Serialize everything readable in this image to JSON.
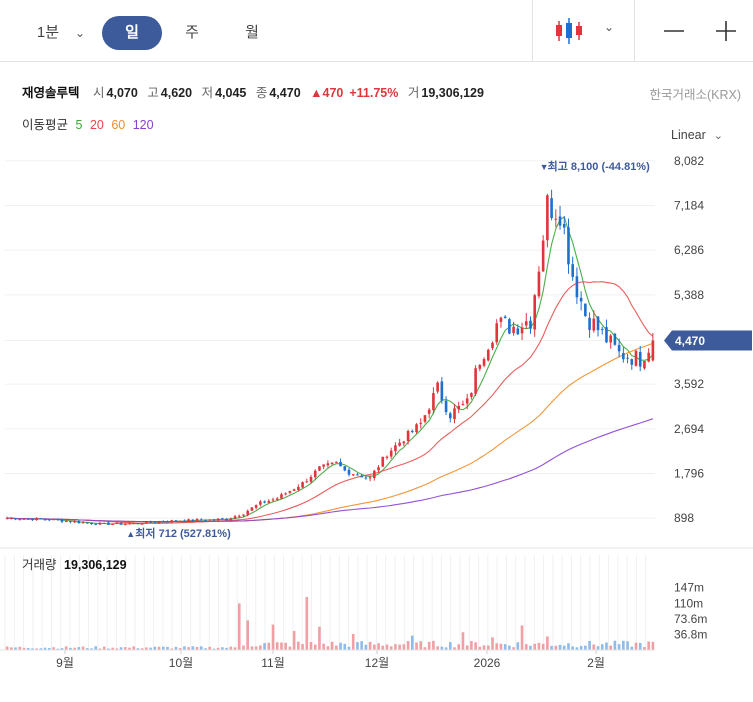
{
  "toolbar": {
    "tf_minute": "1분",
    "tf_day": "일",
    "tf_week": "주",
    "tf_month": "월",
    "active": "일",
    "chart_type_icon": "candlestick-icon",
    "zoom_out_icon": "minus-icon",
    "zoom_in_icon": "plus-icon"
  },
  "quote": {
    "name": "재영솔루텍",
    "open_label": "시",
    "open": "4,070",
    "high_label": "고",
    "high": "4,620",
    "low_label": "저",
    "low": "4,045",
    "close_label": "종",
    "close": "4,470",
    "change": "470",
    "change_pct": "+11.75%",
    "volume_label": "거",
    "volume": "19,306,129",
    "exchange": "한국거래소(KRX)"
  },
  "moving_average": {
    "label": "이동평균",
    "periods": [
      {
        "text": "5",
        "color": "#3aa635"
      },
      {
        "text": "20",
        "color": "#e84a4a"
      },
      {
        "text": "60",
        "color": "#f08c28"
      },
      {
        "text": "120",
        "color": "#8a3fd0"
      }
    ]
  },
  "scale_mode": "Linear",
  "colors": {
    "up": "#e0353d",
    "down": "#1f6fd1",
    "accent": "#3d5a9b"
  },
  "chart_data": {
    "type": "candlestick",
    "price_axis": {
      "ticks": [
        898,
        1796,
        2694,
        3592,
        4470,
        5388,
        6286,
        7184,
        8082
      ],
      "tick_labels": [
        "898",
        "1,796",
        "2,694",
        "3,592",
        "5,388",
        "6,286",
        "7,184",
        "8,082"
      ],
      "range": [
        560,
        8300
      ]
    },
    "current_price": {
      "value": 4470,
      "label": "4,470"
    },
    "high_marker": {
      "value": 8100,
      "label": "최고 8,100 (-44.81%)"
    },
    "low_marker": {
      "value": 712,
      "label": "최저 712 (527.81%)"
    },
    "x_axis": {
      "labels": [
        "9월",
        "10월",
        "11월",
        "12월",
        "2026",
        "2월"
      ]
    },
    "volume_panel": {
      "title": "거래량",
      "value": "19,306,129",
      "tick_labels": [
        "147m",
        "110m",
        "73.6m",
        "36.8m"
      ],
      "ticks": [
        147,
        110,
        73.6,
        36.8
      ],
      "range": [
        0,
        170
      ]
    },
    "keyframes": [
      [
        0,
        900
      ],
      [
        10,
        870
      ],
      [
        22,
        780
      ],
      [
        30,
        790
      ],
      [
        38,
        840
      ],
      [
        45,
        860
      ],
      [
        52,
        880
      ],
      [
        56,
        1000
      ],
      [
        60,
        1200
      ],
      [
        64,
        1300
      ],
      [
        70,
        1600
      ],
      [
        74,
        1900
      ],
      [
        78,
        2000
      ],
      [
        80,
        1850
      ],
      [
        86,
        1700
      ],
      [
        90,
        2200
      ],
      [
        94,
        2500
      ],
      [
        98,
        2800
      ],
      [
        102,
        3500
      ],
      [
        105,
        3000
      ],
      [
        109,
        3200
      ],
      [
        112,
        4100
      ],
      [
        116,
        4800
      ],
      [
        120,
        4750
      ],
      [
        124,
        4900
      ],
      [
        126,
        6000
      ],
      [
        128,
        7200
      ],
      [
        131,
        7100
      ],
      [
        134,
        5800
      ],
      [
        137,
        5000
      ],
      [
        141,
        4600
      ],
      [
        145,
        4200
      ],
      [
        150,
        4100
      ],
      [
        153,
        4470
      ]
    ],
    "volume_spikes": [
      [
        55,
        110
      ],
      [
        57,
        70
      ],
      [
        63,
        60
      ],
      [
        68,
        45
      ],
      [
        71,
        125
      ],
      [
        74,
        55
      ],
      [
        82,
        38
      ],
      [
        96,
        34
      ],
      [
        108,
        42
      ],
      [
        115,
        30
      ],
      [
        122,
        58
      ],
      [
        128,
        32
      ]
    ],
    "ma_periods": [
      5,
      20,
      60,
      120
    ]
  }
}
